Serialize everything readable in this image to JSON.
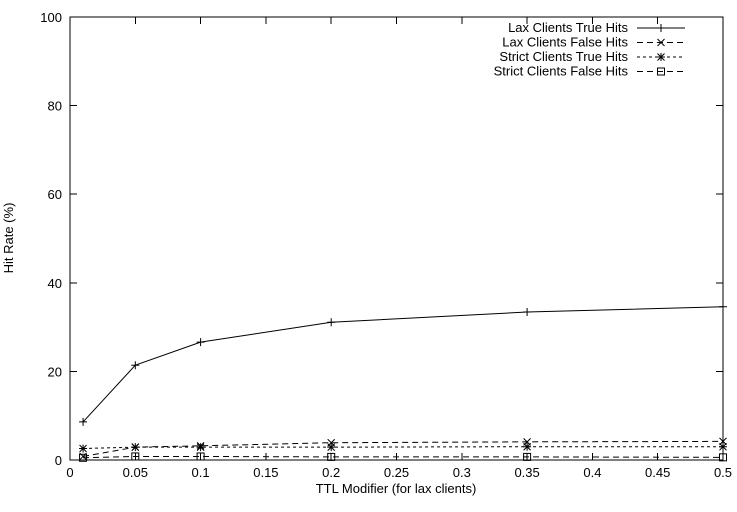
{
  "figure": {
    "background": "#ffffff",
    "foreground": "#000000"
  },
  "chart_data": {
    "type": "line",
    "title": "",
    "xlabel": "TTL Modifier (for lax clients)",
    "ylabel": "Hit Rate (%)",
    "xlim": [
      0,
      0.5
    ],
    "ylim": [
      0,
      100
    ],
    "xticks": [
      0,
      0.05,
      0.1,
      0.15,
      0.2,
      0.25,
      0.3,
      0.35,
      0.4,
      0.45,
      0.5
    ],
    "xtick_labels": [
      "0",
      "0.05",
      "0.1",
      "0.15",
      "0.2",
      "0.25",
      "0.3",
      "0.35",
      "0.4",
      "0.45",
      "0.5"
    ],
    "yticks": [
      0,
      20,
      40,
      60,
      80,
      100
    ],
    "ytick_labels": [
      "0",
      "20",
      "40",
      "60",
      "80",
      "100"
    ],
    "grid": false,
    "legend_position": "top-right-inside",
    "x": [
      0.01,
      0.05,
      0.1,
      0.2,
      0.35,
      0.5
    ],
    "series": [
      {
        "name": "Lax Clients True Hits",
        "marker": "plus",
        "line": "solid",
        "color": "#000000",
        "values": [
          8.6,
          21.4,
          26.6,
          31.1,
          33.4,
          34.6
        ]
      },
      {
        "name": "Lax Clients False Hits",
        "marker": "cross",
        "line": "dashed",
        "color": "#000000",
        "values": [
          0.8,
          2.9,
          3.2,
          3.9,
          4.1,
          4.2
        ]
      },
      {
        "name": "Strict Clients True Hits",
        "marker": "asterisk",
        "line": "dense-dashed",
        "color": "#000000",
        "values": [
          2.6,
          2.9,
          2.9,
          2.9,
          3.0,
          3.0
        ]
      },
      {
        "name": "Strict Clients False Hits",
        "marker": "square",
        "line": "dashed",
        "color": "#000000",
        "values": [
          0.5,
          0.8,
          0.8,
          0.7,
          0.7,
          0.6
        ]
      }
    ]
  }
}
